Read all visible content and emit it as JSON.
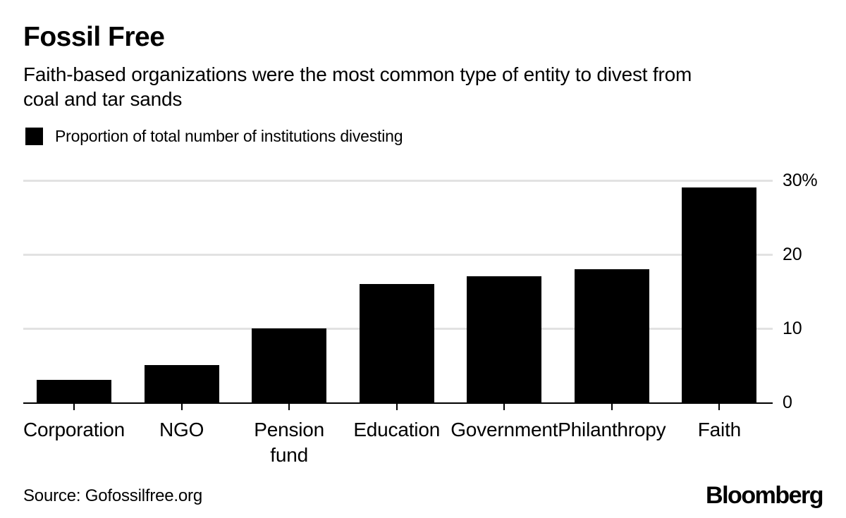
{
  "header": {
    "subtitle_line1": "Faith-based organizations were the most common type of entity to divest from",
    "subtitle_line2": "coal and tar sands"
  },
  "chart_data": {
    "type": "bar",
    "title": "Fossil Free",
    "subtitle": "Faith-based organizations were the most common type of entity to divest from coal and tar sands",
    "legend_label": "Proportion of total number of institutions divesting",
    "categories": [
      "Corporation",
      "NGO",
      "Pension\nfund",
      "Education",
      "Government",
      "Philanthropy",
      "Faith"
    ],
    "values": [
      3,
      5,
      10,
      16,
      17,
      18,
      29
    ],
    "unit": "%",
    "ylim": [
      0,
      30
    ],
    "yticks": [
      {
        "value": 0,
        "label": "0"
      },
      {
        "value": 10,
        "label": "10"
      },
      {
        "value": 20,
        "label": "20"
      },
      {
        "value": 30,
        "label": "30%"
      }
    ],
    "ytick_side": "right",
    "grid": "horizontal",
    "legend_position": "top-left",
    "bar_color": "#000000",
    "gridline_color": "#e2e2e2"
  },
  "footer": {
    "source": "Source: Gofossilfree.org",
    "brand": "Bloomberg"
  }
}
